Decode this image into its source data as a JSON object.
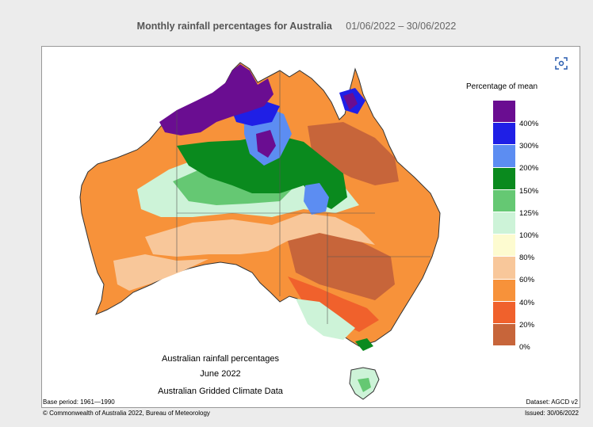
{
  "header": {
    "title": "Monthly rainfall percentages for Australia",
    "date_range": "01/06/2022 – 30/06/2022"
  },
  "map": {
    "legend_title": "Percentage of mean",
    "legend": [
      {
        "label": "400%",
        "color": "#6a0d91"
      },
      {
        "label": "300%",
        "color": "#1f1fe6"
      },
      {
        "label": "200%",
        "color": "#5c8df2"
      },
      {
        "label": "150%",
        "color": "#0a8a1e"
      },
      {
        "label": "125%",
        "color": "#65c873"
      },
      {
        "label": "100%",
        "color": "#cdf3d8"
      },
      {
        "label": "80%",
        "color": "#fdfbd0"
      },
      {
        "label": "60%",
        "color": "#f8c79a"
      },
      {
        "label": "40%",
        "color": "#f7923a"
      },
      {
        "label": "20%",
        "color": "#f0612c"
      },
      {
        "label": "0%",
        "color": "#c7653a"
      }
    ],
    "caption_line1": "Australian rainfall percentages",
    "caption_line2": "June 2022",
    "caption_line3": "Australian Gridded Climate Data",
    "base_period": "Base period: 1961—1990",
    "dataset": "Dataset: AGCD v2"
  },
  "footer": {
    "copyright": "© Commonwealth of Australia 2022, Bureau of Meteorology",
    "issued": "Issued: 30/06/2022"
  },
  "icons": {
    "fullscreen": "fullscreen-icon"
  }
}
